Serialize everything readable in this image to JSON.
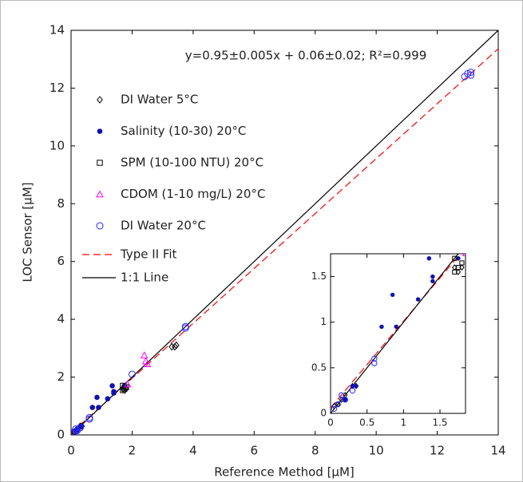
{
  "chart_data": {
    "type": "scatter",
    "annotation": "y=0.95±0.005x + 0.06±0.02; R²=0.999",
    "x_label": "Reference Method [μM]",
    "y_label": "LOC Sensor [μM]",
    "xlim": [
      0,
      14
    ],
    "ylim": [
      0,
      14
    ],
    "xticks": [
      0,
      2,
      4,
      6,
      8,
      10,
      12,
      14
    ],
    "yticks": [
      0,
      2,
      4,
      6,
      8,
      10,
      12,
      14
    ],
    "legend": "upper left",
    "series": [
      {
        "name": "DI Water 5°C",
        "color": "#000000",
        "marker": "diamond",
        "x": [
          0.05,
          0.1,
          0.15,
          0.2,
          0.3,
          0.35,
          1.7,
          1.8,
          1.75,
          3.3,
          3.45,
          3.4
        ],
        "values": [
          0.08,
          0.1,
          0.15,
          0.2,
          0.3,
          0.3,
          1.6,
          1.6,
          1.55,
          3.05,
          3.1,
          3.05
        ]
      },
      {
        "name": "Salinity (10-30) 20°C",
        "color": "#1010b0",
        "marker": "dot",
        "x": [
          0.2,
          0.3,
          0.35,
          0.7,
          0.85,
          0.9,
          1.2,
          1.35,
          1.4,
          1.4,
          1.75
        ],
        "values": [
          0.15,
          0.3,
          0.3,
          0.95,
          1.3,
          0.95,
          1.25,
          1.7,
          1.45,
          1.5,
          1.7
        ]
      },
      {
        "name": "SPM (10-100 NTU) 20°C",
        "color": "#000000",
        "marker": "square",
        "x": [
          1.7,
          1.75,
          1.7,
          1.8
        ],
        "values": [
          1.7,
          1.6,
          1.55,
          1.65
        ]
      },
      {
        "name": "CDOM (1-10 mg/L) 20°C",
        "color": "#ff00ff",
        "marker": "triangle",
        "x": [
          1.85,
          2.4,
          2.45,
          2.5
        ],
        "values": [
          1.75,
          2.75,
          2.55,
          2.45
        ]
      },
      {
        "name": "DI Water 20°C",
        "color": "#2a2aff",
        "marker": "circle",
        "x": [
          0.05,
          0.1,
          0.15,
          0.2,
          0.3,
          0.6,
          0.6,
          2.0,
          3.75,
          3.75,
          12.9,
          13.0,
          13.1,
          13.1
        ],
        "values": [
          0.05,
          0.1,
          0.2,
          0.15,
          0.25,
          0.55,
          0.6,
          2.1,
          3.7,
          3.75,
          12.4,
          12.5,
          12.55,
          12.45
        ]
      }
    ],
    "lines": [
      {
        "name": "Type II Fit",
        "color": "#ff0000",
        "dash": true,
        "x": [
          0,
          14
        ],
        "values": [
          0.06,
          13.36
        ]
      },
      {
        "name": "1:1 Line",
        "color": "#000000",
        "dash": false,
        "x": [
          0,
          14
        ],
        "values": [
          0,
          14
        ]
      }
    ],
    "inset": {
      "xlim": [
        0,
        1.85
      ],
      "ylim": [
        0,
        1.75
      ],
      "xticks": [
        0,
        0.5,
        1,
        1.5
      ],
      "yticks": [
        0,
        0.5,
        1,
        1.5
      ]
    }
  }
}
